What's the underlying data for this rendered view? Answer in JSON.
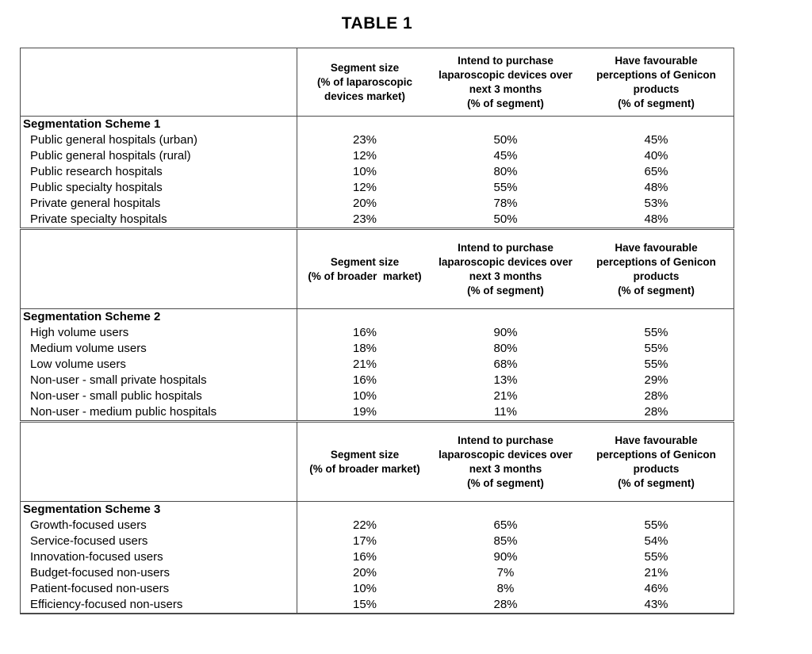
{
  "title": "TABLE 1",
  "colors": {
    "text": "#000000",
    "border": "#4a4a4a",
    "background": "#ffffff"
  },
  "table": {
    "sections": [
      {
        "label": "Segmentation Scheme 1",
        "col_headers": [
          "Segment size\n(% of laparoscopic\ndevices market)",
          "Intend to purchase\nlaparoscopic devices over\nnext 3 months\n(% of segment)",
          "Have favourable\nperceptions of Genicon\nproducts\n(% of segment)"
        ],
        "rows": [
          {
            "label": "Public general hospitals (urban)",
            "values": [
              "23%",
              "50%",
              "45%"
            ]
          },
          {
            "label": "Public general hospitals (rural)",
            "values": [
              "12%",
              "45%",
              "40%"
            ]
          },
          {
            "label": "Public research hospitals",
            "values": [
              "10%",
              "80%",
              "65%"
            ]
          },
          {
            "label": "Public specialty hospitals",
            "values": [
              "12%",
              "55%",
              "48%"
            ]
          },
          {
            "label": "Private general hospitals",
            "values": [
              "20%",
              "78%",
              "53%"
            ]
          },
          {
            "label": "Private specialty hospitals",
            "values": [
              "23%",
              "50%",
              "48%"
            ]
          }
        ]
      },
      {
        "label": "Segmentation Scheme 2",
        "col_headers": [
          "Segment size\n(% of broader  market)",
          "Intend to purchase\nlaparoscopic devices over\nnext 3 months\n(% of segment)",
          "Have favourable\nperceptions of Genicon\nproducts\n(% of segment)"
        ],
        "rows": [
          {
            "label": "High volume users",
            "values": [
              "16%",
              "90%",
              "55%"
            ]
          },
          {
            "label": "Medium volume users",
            "values": [
              "18%",
              "80%",
              "55%"
            ]
          },
          {
            "label": "Low volume users",
            "values": [
              "21%",
              "68%",
              "55%"
            ]
          },
          {
            "label": "Non-user - small private hospitals",
            "values": [
              "16%",
              "13%",
              "29%"
            ]
          },
          {
            "label": "Non-user - small public hospitals",
            "values": [
              "10%",
              "21%",
              "28%"
            ]
          },
          {
            "label": "Non-user - medium public hospitals",
            "values": [
              "19%",
              "11%",
              "28%"
            ]
          }
        ]
      },
      {
        "label": "Segmentation Scheme 3",
        "col_headers": [
          "Segment size\n(% of broader market)",
          "Intend to purchase\nlaparoscopic devices over\nnext 3 months\n(% of segment)",
          "Have favourable\nperceptions of Genicon\nproducts\n(% of segment)"
        ],
        "rows": [
          {
            "label": "Growth-focused users",
            "values": [
              "22%",
              "65%",
              "55%"
            ]
          },
          {
            "label": "Service-focused users",
            "values": [
              "17%",
              "85%",
              "54%"
            ]
          },
          {
            "label": "Innovation-focused users",
            "values": [
              "16%",
              "90%",
              "55%"
            ]
          },
          {
            "label": "Budget-focused non-users",
            "values": [
              "20%",
              "7%",
              "21%"
            ]
          },
          {
            "label": "Patient-focused non-users",
            "values": [
              "10%",
              "8%",
              "46%"
            ]
          },
          {
            "label": "Efficiency-focused non-users",
            "values": [
              "15%",
              "28%",
              "43%"
            ]
          }
        ]
      }
    ]
  }
}
